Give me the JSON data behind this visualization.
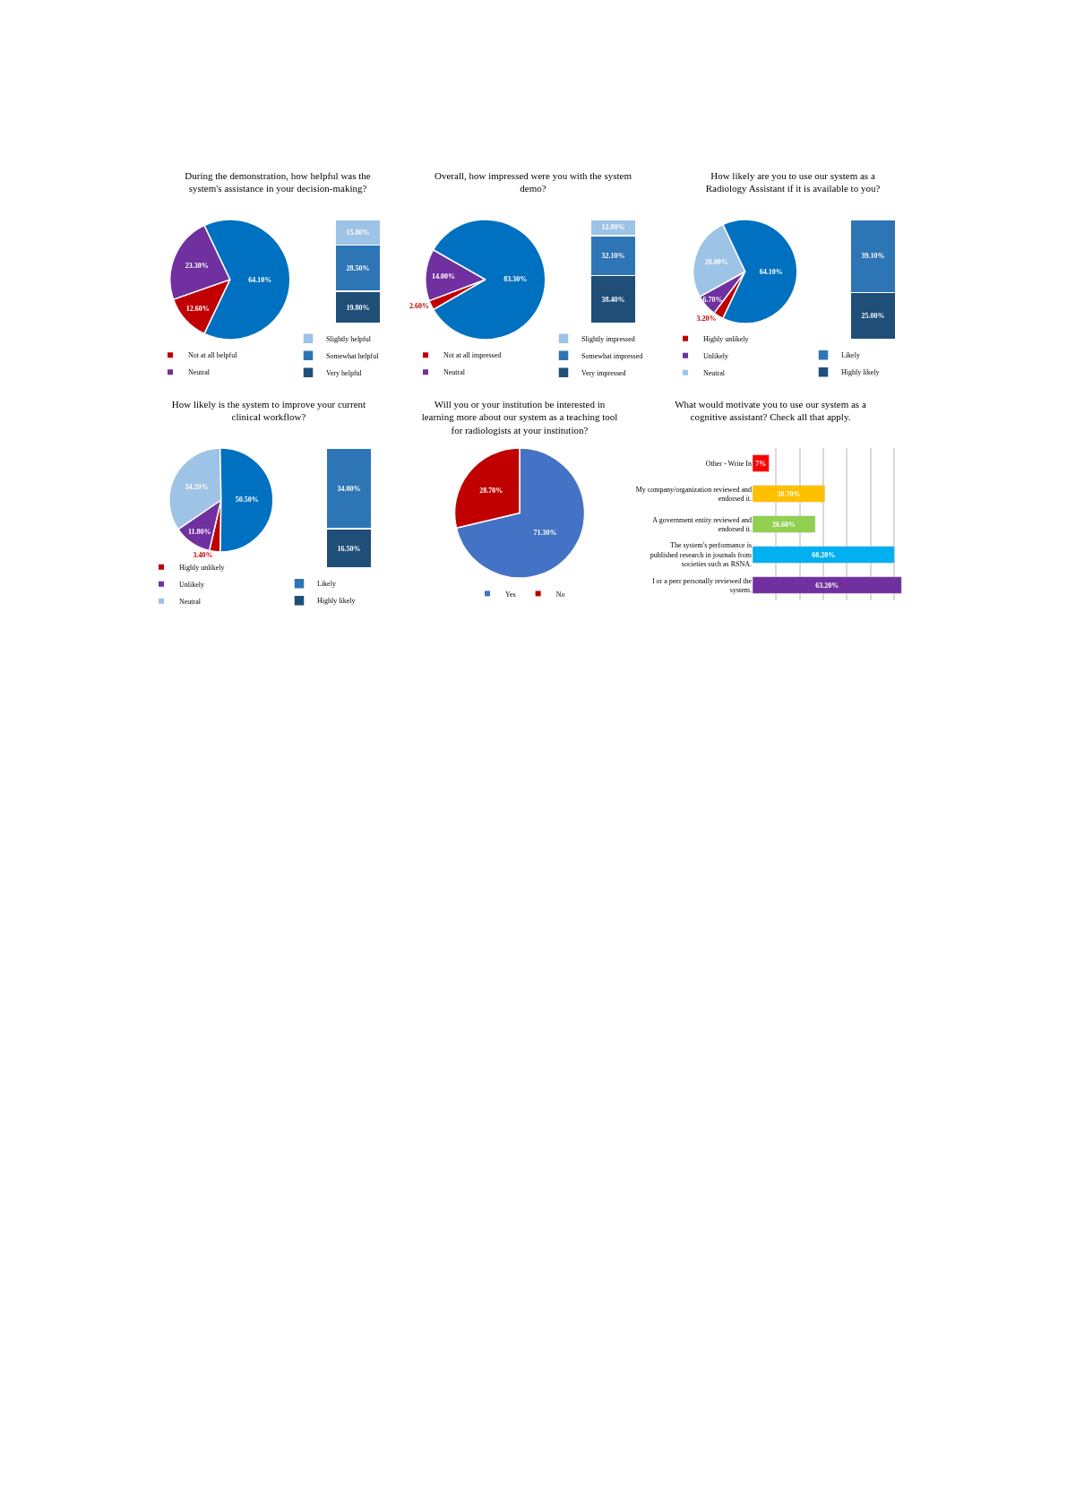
{
  "chart_data": [
    {
      "type": "pie",
      "title": "During the demonstration, how helpful was the system's assistance in your decision-making?",
      "categories": [
        "Not at all helpful",
        "Neutral",
        null
      ],
      "values": [
        12.6,
        23.3,
        64.1
      ],
      "colors": [
        "#c00000",
        "#7030a0",
        "#0070c0"
      ],
      "value_labels": [
        "12.60%",
        "23.30%",
        "64.10%"
      ],
      "legend": "bottom"
    },
    {
      "type": "bar",
      "stacked": true,
      "categories": [
        null
      ],
      "ylim": [
        0,
        64.1
      ],
      "tick_labels": false,
      "legend": "bottom",
      "series": [
        {
          "name": "Very helpful",
          "color": "#1f4e79",
          "values": [
            19.8
          ],
          "value_labels": [
            "19.80%"
          ]
        },
        {
          "name": "Somewhat helpful",
          "color": "#2e75b6",
          "values": [
            28.5
          ],
          "value_labels": [
            "28.50%"
          ]
        },
        {
          "name": "Slightly helpful",
          "color": "#9dc3e6",
          "values": [
            15.8
          ],
          "value_labels": [
            "15.80%"
          ]
        }
      ]
    },
    {
      "type": "pie",
      "title": "Overall, how impressed were you with the system demo?",
      "categories": [
        "Not at all impressed",
        "Neutral",
        null
      ],
      "values": [
        2.6,
        14.0,
        83.3
      ],
      "colors": [
        "#c00000",
        "#7030a0",
        "#0070c0"
      ],
      "value_labels": [
        "2.60%",
        "14.00%",
        "83.30%"
      ],
      "legend": "bottom"
    },
    {
      "type": "bar",
      "stacked": true,
      "categories": [
        null
      ],
      "ylim": [
        0,
        83.3
      ],
      "tick_labels": false,
      "legend": "bottom",
      "series": [
        {
          "name": "Very impressed",
          "color": "#1f4e79",
          "values": [
            38.4
          ],
          "value_labels": [
            "38.40%"
          ]
        },
        {
          "name": "Somewhat impressed",
          "color": "#2e75b6",
          "values": [
            32.1
          ],
          "value_labels": [
            "32.10%"
          ]
        },
        {
          "name": "Slightly impressed",
          "color": "#9dc3e6",
          "values": [
            12.8
          ],
          "value_labels": [
            "12.80%"
          ]
        }
      ]
    },
    {
      "type": "pie",
      "title": "How likely are you to use our system as a Radiology Assistant if it is available to you?",
      "categories": [
        "Highly unlikely",
        "Unlikely",
        "Neutral",
        null
      ],
      "values": [
        3.2,
        6.7,
        26.0,
        64.1
      ],
      "colors": [
        "#c00000",
        "#7030a0",
        "#9dc3e6",
        "#0070c0"
      ],
      "value_labels": [
        "3.20%",
        "6.70%",
        "26.00%",
        "64.10%"
      ],
      "legend": "bottom"
    },
    {
      "type": "bar",
      "stacked": true,
      "categories": [
        null
      ],
      "ylim": [
        0,
        64.1
      ],
      "tick_labels": false,
      "legend": "bottom",
      "series": [
        {
          "name": "Highly likely",
          "color": "#1f4e79",
          "values": [
            25.0
          ],
          "value_labels": [
            "25.00%"
          ]
        },
        {
          "name": "Likely",
          "color": "#2e75b6",
          "values": [
            39.1
          ],
          "value_labels": [
            "39.10%"
          ]
        }
      ]
    },
    {
      "type": "pie",
      "title": "How likely is the system to improve your current clinical workflow?",
      "categories": [
        "Highly unlikely",
        "Unlikely",
        "Neutral",
        null
      ],
      "values": [
        3.4,
        11.8,
        34.2,
        50.5
      ],
      "colors": [
        "#c00000",
        "#7030a0",
        "#9dc3e6",
        "#0070c0"
      ],
      "value_labels": [
        "3.40%",
        "11.80%",
        "34.20%",
        "50.50%"
      ],
      "legend": "bottom"
    },
    {
      "type": "bar",
      "stacked": true,
      "categories": [
        null
      ],
      "ylim": [
        0,
        50.5
      ],
      "tick_labels": false,
      "legend": "bottom",
      "series": [
        {
          "name": "Highly likely",
          "color": "#1f4e79",
          "values": [
            16.5
          ],
          "value_labels": [
            "16.50%"
          ]
        },
        {
          "name": "Likely",
          "color": "#2e75b6",
          "values": [
            34.0
          ],
          "value_labels": [
            "34.00%"
          ]
        }
      ]
    },
    {
      "type": "pie",
      "title": "Will you or your institution be interested in learning more about our system as a teaching tool for radiologists at your institution?",
      "categories": [
        "Yes",
        "No"
      ],
      "values": [
        71.3,
        28.7
      ],
      "colors": [
        "#4472c4",
        "#c00000"
      ],
      "value_labels": [
        "71.30%",
        "28.70%"
      ],
      "legend": "bottom"
    },
    {
      "type": "bar",
      "orientation": "horizontal",
      "title": "What would motivate you to use our system as a cognitive assistant? Check all that apply.",
      "categories": [
        "Other - Write In",
        "My company/organization reviewed and endorsed it.",
        "A government entity reviewed and endorsed it.",
        "The system's performance is published research in journals from societies such as RSNA.",
        "I or a peer personally reviewed the system."
      ],
      "values": [
        7,
        30.7,
        26.6,
        60.2,
        63.2
      ],
      "colors": [
        "#ff0000",
        "#ffc000",
        "#92d050",
        "#00b0f0",
        "#7030a0"
      ],
      "value_labels": [
        "7%",
        "30.70%",
        "26.60%",
        "60.20%",
        "63.20%"
      ],
      "grid": "x",
      "tick_labels": "y"
    }
  ]
}
